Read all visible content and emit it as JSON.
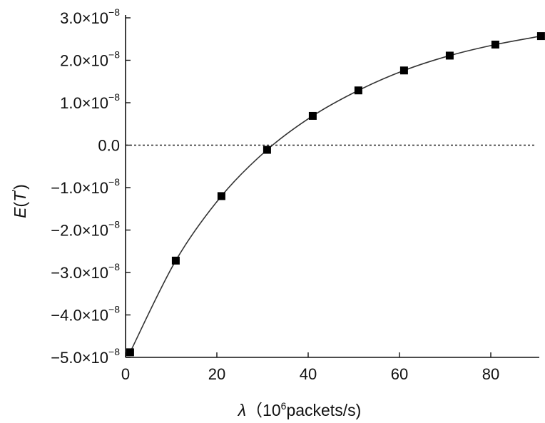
{
  "chart_data": {
    "type": "line",
    "title": "",
    "xlabel": {
      "symbol": "λ",
      "unit_open": "（10",
      "unit_exp": "6",
      "unit_rest": "packets/s)"
    },
    "ylabel": {
      "prefix": "E",
      "open": "(",
      "var": "T",
      "prime": "'",
      "close": ")"
    },
    "xlim": [
      0,
      90
    ],
    "ylim": [
      -5e-08,
      3e-08
    ],
    "xticks": [
      0,
      20,
      40,
      60,
      80
    ],
    "xtick_labels": [
      "0",
      "20",
      "40",
      "60",
      "80"
    ],
    "yticks": [
      3e-08,
      2e-08,
      1e-08,
      0.0,
      -1e-08,
      -2e-08,
      -3e-08,
      -4e-08,
      -5e-08
    ],
    "ytick_labels": [
      {
        "mant": "3.0×10",
        "exp": "−8"
      },
      {
        "mant": "2.0×10",
        "exp": "−8"
      },
      {
        "mant": "1.0×10",
        "exp": "−8"
      },
      {
        "mant": "0.0",
        "exp": ""
      },
      {
        "mant": "−1.0×10",
        "exp": "−8"
      },
      {
        "mant": "−2.0×10",
        "exp": "−8"
      },
      {
        "mant": "−3.0×10",
        "exp": "−8"
      },
      {
        "mant": "−4.0×10",
        "exp": "−8"
      },
      {
        "mant": "−5.0×10",
        "exp": "−8"
      }
    ],
    "reference_line_y": 0.0,
    "series": [
      {
        "marker": "square",
        "color": "#000000",
        "x": [
          1,
          11,
          21,
          31,
          41,
          51,
          61,
          71,
          81,
          91
        ],
        "y": [
          -4.88e-08,
          -2.72e-08,
          -1.2e-08,
          -1.1e-09,
          6.9e-09,
          1.29e-08,
          1.76e-08,
          2.11e-08,
          2.37e-08,
          2.57e-08
        ]
      }
    ],
    "grid": false
  }
}
